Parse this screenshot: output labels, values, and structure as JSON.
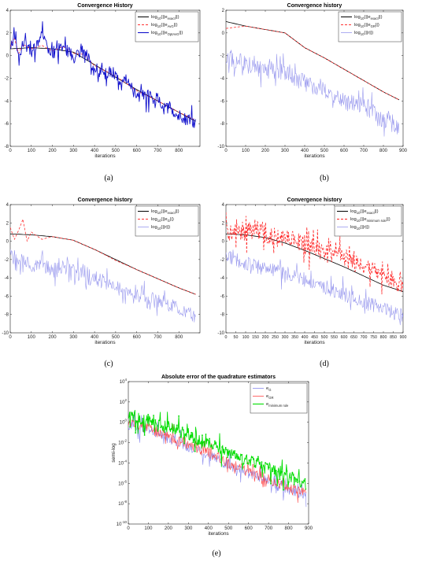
{
  "chart_data": [
    {
      "id": "a",
      "type": "line",
      "caption": "(a)",
      "title": "Convergence History",
      "xlabel": "iterations",
      "ylabel": "",
      "xlim": [
        0,
        900
      ],
      "ylim": [
        -8,
        4
      ],
      "xticks": [
        0,
        100,
        200,
        300,
        400,
        500,
        600,
        700,
        800
      ],
      "yticks": [
        -8,
        -6,
        -4,
        -2,
        0,
        2,
        4
      ],
      "legend_position": "top-right",
      "series": [
        {
          "name": "exact",
          "legend_main": "log",
          "legend_sub": "10",
          "legend_pre": "(||e",
          "legend_subsub": "exact",
          "legend_post": "||)",
          "color": "#000000",
          "dash": "",
          "width": 0.8,
          "x": [
            0,
            100,
            200,
            300,
            400,
            500,
            600,
            700,
            800,
            880
          ],
          "y": [
            0.6,
            0.7,
            0.6,
            0.3,
            -0.8,
            -1.9,
            -3.0,
            -4.0,
            -5.0,
            -5.8
          ]
        },
        {
          "name": "AvG",
          "legend_main": "log",
          "legend_sub": "10",
          "legend_pre": "(||e",
          "legend_subsub": "AvG",
          "legend_post": "||)",
          "color": "#ff3333",
          "dash": "3,2",
          "width": 0.8,
          "x": [
            0,
            20,
            40,
            60,
            100,
            150,
            200,
            250,
            300,
            350,
            400,
            500,
            600,
            700,
            800,
            880
          ],
          "y": [
            0.8,
            1.5,
            0.2,
            1.0,
            0.6,
            0.9,
            0.4,
            0.8,
            0.2,
            0.1,
            -0.9,
            -1.8,
            -3.1,
            -4.0,
            -5.0,
            -5.7
          ]
        },
        {
          "name": "OptAvG",
          "legend_main": "log",
          "legend_sub": "10",
          "legend_pre": "(||e",
          "legend_subsub": "OptAvG",
          "legend_post": "||)",
          "color": "#1010cc",
          "dash": "",
          "width": 0.9,
          "x": [
            0,
            20,
            40,
            60,
            100,
            150,
            200,
            250,
            300,
            350,
            400,
            500,
            600,
            700,
            800,
            880
          ],
          "y": [
            0.5,
            1.8,
            -0.5,
            1.2,
            0.3,
            1.5,
            0.2,
            1.0,
            -0.2,
            0.4,
            -1.2,
            -1.5,
            -3.4,
            -3.8,
            -5.3,
            -5.9
          ],
          "noise": 1.1,
          "noise_min": 0.6
        }
      ]
    },
    {
      "id": "b",
      "type": "line",
      "caption": "(b)",
      "title": "Convergence history",
      "xlabel": "iterations",
      "ylabel": "",
      "xlim": [
        0,
        900
      ],
      "ylim": [
        -10,
        2
      ],
      "xticks": [
        0,
        100,
        200,
        300,
        400,
        500,
        600,
        700,
        800,
        900
      ],
      "yticks": [
        -10,
        -8,
        -6,
        -4,
        -2,
        0,
        2
      ],
      "legend_position": "top-right",
      "series": [
        {
          "name": "exact",
          "legend_main": "log",
          "legend_sub": "10",
          "legend_pre": "(||e",
          "legend_subsub": "exact",
          "legend_post": "||)",
          "color": "#000000",
          "dash": "",
          "width": 0.8,
          "x": [
            0,
            100,
            200,
            300,
            400,
            500,
            600,
            700,
            800,
            880
          ],
          "y": [
            1.0,
            0.6,
            0.3,
            0.0,
            -1.3,
            -2.2,
            -3.2,
            -4.2,
            -5.2,
            -5.9
          ]
        },
        {
          "name": "GR",
          "legend_main": "log",
          "legend_sub": "10",
          "legend_pre": "(||e",
          "legend_subsub": "GR",
          "legend_post": "||)",
          "color": "#ff3333",
          "dash": "3,2",
          "width": 0.8,
          "x": [
            0,
            100,
            200,
            300,
            400,
            500,
            600,
            700,
            800,
            880
          ],
          "y": [
            0.4,
            0.6,
            0.3,
            0.0,
            -1.3,
            -2.2,
            -3.2,
            -4.2,
            -5.2,
            -5.9
          ]
        },
        {
          "name": "r",
          "legend_main": "log",
          "legend_sub": "10",
          "legend_pre": "(||r||)",
          "legend_subsub": "",
          "legend_post": "",
          "color": "#9999ee",
          "dash": "",
          "width": 0.6,
          "x": [
            0,
            100,
            200,
            300,
            400,
            500,
            600,
            700,
            800,
            880
          ],
          "y": [
            -2.0,
            -2.8,
            -3.2,
            -3.5,
            -4.4,
            -5.2,
            -6.0,
            -6.6,
            -7.6,
            -8.3
          ],
          "noise": 1.2,
          "noise_min": 0.8
        }
      ]
    },
    {
      "id": "c",
      "type": "line",
      "caption": "(c)",
      "title": "Convergence history",
      "xlabel": "iterations",
      "ylabel": "",
      "xlim": [
        0,
        900
      ],
      "ylim": [
        -10,
        4
      ],
      "xticks": [
        0,
        100,
        200,
        300,
        400,
        500,
        600,
        700,
        800
      ],
      "yticks": [
        -10,
        -8,
        -6,
        -4,
        -2,
        0,
        2,
        4
      ],
      "legend_position": "top-right",
      "series": [
        {
          "name": "exact",
          "legend_main": "log",
          "legend_sub": "10",
          "legend_pre": "(||e",
          "legend_subsub": "exact",
          "legend_post": "||)",
          "color": "#000000",
          "dash": "",
          "width": 0.8,
          "x": [
            0,
            100,
            200,
            300,
            400,
            500,
            600,
            700,
            800,
            880
          ],
          "y": [
            0.8,
            0.7,
            0.5,
            0.1,
            -0.9,
            -2.0,
            -3.1,
            -4.1,
            -5.1,
            -5.8
          ]
        },
        {
          "name": "G",
          "legend_main": "log",
          "legend_sub": "10",
          "legend_pre": "(||e",
          "legend_subsub": "G",
          "legend_post": "||)",
          "color": "#ff3333",
          "dash": "3,2",
          "width": 0.8,
          "x": [
            0,
            20,
            40,
            60,
            80,
            100,
            150,
            200,
            300,
            400,
            500,
            600,
            700,
            800,
            880
          ],
          "y": [
            1.5,
            0.2,
            1.2,
            2.4,
            0.0,
            1.0,
            0.2,
            0.5,
            0.1,
            -0.9,
            -2.1,
            -3.1,
            -4.1,
            -5.1,
            -5.8
          ]
        },
        {
          "name": "r",
          "legend_main": "log",
          "legend_sub": "10",
          "legend_pre": "(||r||)",
          "legend_subsub": "",
          "legend_post": "",
          "color": "#9999ee",
          "dash": "",
          "width": 0.6,
          "x": [
            0,
            100,
            200,
            300,
            400,
            500,
            600,
            700,
            800,
            880
          ],
          "y": [
            -1.6,
            -2.4,
            -3.0,
            -3.4,
            -4.0,
            -5.0,
            -5.8,
            -6.4,
            -7.4,
            -8.2
          ],
          "noise": 1.2,
          "noise_min": 0.8
        }
      ]
    },
    {
      "id": "d",
      "type": "line",
      "caption": "(d)",
      "title": "Convergence history",
      "xlabel": "iterations",
      "ylabel": "",
      "xlim": [
        0,
        900
      ],
      "ylim": [
        -10,
        4
      ],
      "xticks": [
        0,
        50,
        100,
        150,
        200,
        250,
        300,
        350,
        400,
        450,
        500,
        550,
        600,
        650,
        700,
        750,
        800,
        850,
        900
      ],
      "yticks": [
        -10,
        -8,
        -6,
        -4,
        -2,
        0,
        2,
        4
      ],
      "legend_position": "top-right",
      "series": [
        {
          "name": "exact",
          "legend_main": "log",
          "legend_sub": "10",
          "legend_pre": "(||e",
          "legend_subsub": "exact",
          "legend_post": "||)",
          "color": "#000000",
          "dash": "",
          "width": 0.8,
          "x": [
            0,
            100,
            200,
            300,
            400,
            500,
            600,
            700,
            800,
            900
          ],
          "y": [
            0.8,
            0.7,
            0.4,
            -0.2,
            -1.0,
            -1.9,
            -2.8,
            -3.8,
            -4.8,
            -5.5
          ]
        },
        {
          "name": "minimum rule",
          "legend_main": "log",
          "legend_sub": "10",
          "legend_pre": "(||e",
          "legend_subsub": "minimum rule",
          "legend_post": "||)",
          "color": "#ff2222",
          "dash": "3,2",
          "width": 0.8,
          "x": [
            0,
            100,
            150,
            200,
            300,
            400,
            500,
            600,
            700,
            800,
            900
          ],
          "y": [
            1.0,
            0.8,
            1.5,
            0.8,
            0.3,
            -0.3,
            -1.1,
            -1.8,
            -2.8,
            -3.8,
            -4.8
          ],
          "noise": 1.8,
          "noise_min": 1.0
        },
        {
          "name": "r",
          "legend_main": "log",
          "legend_sub": "10",
          "legend_pre": "(||r||)",
          "legend_subsub": "",
          "legend_post": "",
          "color": "#9999ee",
          "dash": "",
          "width": 0.6,
          "x": [
            0,
            100,
            200,
            300,
            400,
            500,
            600,
            700,
            800,
            900
          ],
          "y": [
            -1.7,
            -2.4,
            -3.0,
            -3.4,
            -4.2,
            -5.0,
            -5.8,
            -6.6,
            -7.4,
            -8.2
          ],
          "noise": 1.2,
          "noise_min": 0.8
        }
      ]
    },
    {
      "id": "e",
      "type": "line",
      "caption": "(e)",
      "title": "Absolute error of the quadrature estimators",
      "xlabel": "iterations",
      "ylabel": "semi-log",
      "log_y": true,
      "xlim": [
        0,
        900
      ],
      "ylim": [
        -10,
        4
      ],
      "xticks": [
        0,
        100,
        200,
        300,
        400,
        500,
        600,
        700,
        800,
        900
      ],
      "yticks": [
        -10,
        -8,
        -6,
        -4,
        -2,
        0,
        2,
        4
      ],
      "ytick_base": "10",
      "legend_position": "top-right",
      "series": [
        {
          "name": "G",
          "legend_main": "e",
          "legend_sub": "G",
          "legend_pre": "",
          "legend_subsub": "",
          "legend_post": "",
          "color": "#8888ee",
          "dash": "",
          "width": 0.6,
          "x": [
            0,
            100,
            200,
            300,
            400,
            500,
            600,
            700,
            800,
            890
          ],
          "y": [
            -0.2,
            -0.8,
            -1.6,
            -2.4,
            -3.2,
            -4.2,
            -5.0,
            -5.8,
            -6.6,
            -7.2
          ],
          "noise": 1.0,
          "noise_min": 0.5
        },
        {
          "name": "GR",
          "legend_main": "e",
          "legend_sub": "GR",
          "legend_pre": "",
          "legend_subsub": "",
          "legend_post": "",
          "color": "#ff4444",
          "dash": "",
          "width": 0.6,
          "x": [
            0,
            100,
            200,
            300,
            400,
            500,
            600,
            700,
            800,
            890
          ],
          "y": [
            0.0,
            -0.6,
            -1.4,
            -2.2,
            -3.0,
            -4.0,
            -4.8,
            -5.6,
            -6.4,
            -7.0
          ],
          "noise": 0.9,
          "noise_min": 0.5
        },
        {
          "name": "minimum rule",
          "legend_main": "e",
          "legend_sub": "minimum rule",
          "legend_pre": "",
          "legend_subsub": "",
          "legend_post": "",
          "color": "#00dd00",
          "dash": "",
          "width": 0.9,
          "markers": true,
          "x": [
            0,
            100,
            200,
            300,
            400,
            500,
            600,
            700,
            800,
            890
          ],
          "y": [
            0.8,
            0.2,
            -0.5,
            -1.2,
            -2.0,
            -3.0,
            -3.8,
            -4.6,
            -5.4,
            -6.0
          ],
          "noise": 1.3,
          "noise_min": 0.6
        }
      ]
    }
  ]
}
